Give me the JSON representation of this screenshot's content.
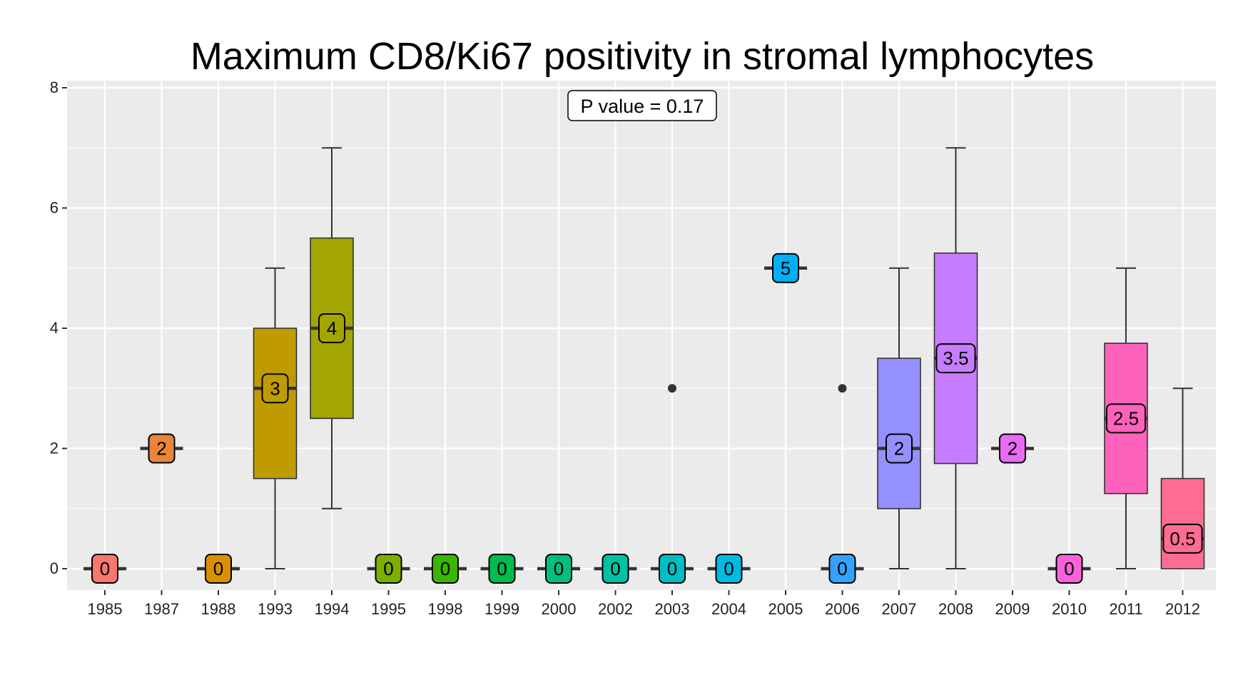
{
  "chart_data": {
    "type": "boxplot",
    "title": "Maximum CD8/Ki67 positivity in stromal lymphocytes",
    "xlabel": "",
    "ylabel": "",
    "ylim": [
      0,
      8
    ],
    "y_ticks": [
      "0",
      "2",
      "4",
      "6",
      "8"
    ],
    "grid": true,
    "legend": "none",
    "annotation": "P value = 0.17",
    "categories": [
      "1985",
      "1987",
      "1988",
      "1993",
      "1994",
      "1995",
      "1998",
      "1999",
      "2000",
      "2002",
      "2003",
      "2004",
      "2005",
      "2006",
      "2007",
      "2008",
      "2009",
      "2010",
      "2011",
      "2012"
    ],
    "boxes": [
      {
        "category": "1985",
        "min": 0,
        "q1": 0,
        "median": 0,
        "q3": 0,
        "max": 0,
        "outliers": [],
        "median_label": "0",
        "color": "#F8766D"
      },
      {
        "category": "1987",
        "min": 2,
        "q1": 2,
        "median": 2,
        "q3": 2,
        "max": 2,
        "outliers": [],
        "median_label": "2",
        "color": "#E8853A"
      },
      {
        "category": "1988",
        "min": 0,
        "q1": 0,
        "median": 0,
        "q3": 0,
        "max": 0,
        "outliers": [],
        "median_label": "0",
        "color": "#D89000"
      },
      {
        "category": "1993",
        "min": 0,
        "q1": 1.5,
        "median": 3,
        "q3": 4,
        "max": 5,
        "outliers": [],
        "median_label": "3",
        "color": "#C09B00"
      },
      {
        "category": "1994",
        "min": 1,
        "q1": 2.5,
        "median": 4,
        "q3": 5.5,
        "max": 7,
        "outliers": [],
        "median_label": "4",
        "color": "#A3A500"
      },
      {
        "category": "1995",
        "min": 0,
        "q1": 0,
        "median": 0,
        "q3": 0,
        "max": 0,
        "outliers": [],
        "median_label": "0",
        "color": "#7CAE00"
      },
      {
        "category": "1998",
        "min": 0,
        "q1": 0,
        "median": 0,
        "q3": 0,
        "max": 0,
        "outliers": [],
        "median_label": "0",
        "color": "#39B600"
      },
      {
        "category": "1999",
        "min": 0,
        "q1": 0,
        "median": 0,
        "q3": 0,
        "max": 0,
        "outliers": [],
        "median_label": "0",
        "color": "#00BB4E"
      },
      {
        "category": "2000",
        "min": 0,
        "q1": 0,
        "median": 0,
        "q3": 0,
        "max": 0,
        "outliers": [],
        "median_label": "0",
        "color": "#00BF7D"
      },
      {
        "category": "2002",
        "min": 0,
        "q1": 0,
        "median": 0,
        "q3": 0,
        "max": 0,
        "outliers": [],
        "median_label": "0",
        "color": "#00C1A3"
      },
      {
        "category": "2003",
        "min": 0,
        "q1": 0,
        "median": 0,
        "q3": 0,
        "max": 0,
        "outliers": [
          3
        ],
        "median_label": "0",
        "color": "#00BFC4"
      },
      {
        "category": "2004",
        "min": 0,
        "q1": 0,
        "median": 0,
        "q3": 0,
        "max": 0,
        "outliers": [],
        "median_label": "0",
        "color": "#00BAE0"
      },
      {
        "category": "2005",
        "min": 5,
        "q1": 5,
        "median": 5,
        "q3": 5,
        "max": 5,
        "outliers": [],
        "median_label": "5",
        "color": "#00B0F6"
      },
      {
        "category": "2006",
        "min": 0,
        "q1": 0,
        "median": 0,
        "q3": 0,
        "max": 0,
        "outliers": [
          3
        ],
        "median_label": "0",
        "color": "#35A2FF"
      },
      {
        "category": "2007",
        "min": 0,
        "q1": 1,
        "median": 2,
        "q3": 3.5,
        "max": 5,
        "outliers": [],
        "median_label": "2",
        "color": "#9590FF"
      },
      {
        "category": "2008",
        "min": 0,
        "q1": 1.75,
        "median": 3.5,
        "q3": 5.25,
        "max": 7,
        "outliers": [],
        "median_label": "3.5",
        "color": "#C77CFF"
      },
      {
        "category": "2009",
        "min": 2,
        "q1": 2,
        "median": 2,
        "q3": 2,
        "max": 2,
        "outliers": [],
        "median_label": "2",
        "color": "#E76BF3"
      },
      {
        "category": "2010",
        "min": 0,
        "q1": 0,
        "median": 0,
        "q3": 0,
        "max": 0,
        "outliers": [],
        "median_label": "0",
        "color": "#FA62DB"
      },
      {
        "category": "2011",
        "min": 0,
        "q1": 1.25,
        "median": 2.5,
        "q3": 3.75,
        "max": 5,
        "outliers": [],
        "median_label": "2.5",
        "color": "#FF62BC"
      },
      {
        "category": "2012",
        "min": 0,
        "q1": 0,
        "median": 0.5,
        "q3": 1.5,
        "max": 3,
        "outliers": [],
        "median_label": "0.5",
        "color": "#FF6C91"
      }
    ],
    "colors": {
      "panel": "#EBEBEB",
      "grid": "#FFFFFF",
      "box_line": "#333333"
    }
  }
}
